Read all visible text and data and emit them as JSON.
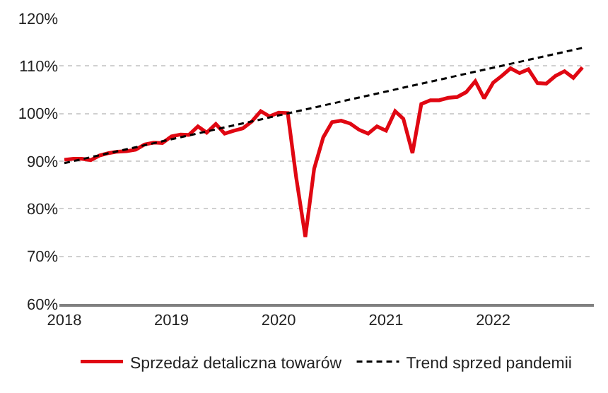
{
  "chart_data": {
    "type": "line",
    "x": [
      "2018-01",
      "2018-02",
      "2018-03",
      "2018-04",
      "2018-05",
      "2018-06",
      "2018-07",
      "2018-08",
      "2018-09",
      "2018-10",
      "2018-11",
      "2018-12",
      "2019-01",
      "2019-02",
      "2019-03",
      "2019-04",
      "2019-05",
      "2019-06",
      "2019-07",
      "2019-08",
      "2019-09",
      "2019-10",
      "2019-11",
      "2019-12",
      "2020-01",
      "2020-02",
      "2020-03",
      "2020-04",
      "2020-05",
      "2020-06",
      "2020-07",
      "2020-08",
      "2020-09",
      "2020-10",
      "2020-11",
      "2020-12",
      "2021-01",
      "2021-02",
      "2021-03",
      "2021-04",
      "2021-05",
      "2021-06",
      "2021-07",
      "2021-08",
      "2021-09",
      "2021-10",
      "2021-11",
      "2021-12",
      "2022-01",
      "2022-02",
      "2022-03",
      "2022-04",
      "2022-05",
      "2022-06",
      "2022-07",
      "2022-08",
      "2022-09",
      "2022-10",
      "2022-11"
    ],
    "series": [
      {
        "name": "Sprzedaż detaliczna towarów",
        "color": "#e00712",
        "line_style": "solid",
        "values": [
          90.3,
          90.5,
          90.5,
          90.2,
          91.2,
          91.7,
          92.0,
          92.1,
          92.4,
          93.5,
          93.9,
          93.8,
          95.2,
          95.6,
          95.5,
          97.3,
          96.0,
          97.8,
          95.8,
          96.4,
          96.9,
          98.3,
          100.5,
          99.4,
          100.2,
          100.1,
          86.5,
          74.1,
          88.4,
          95.0,
          98.2,
          98.5,
          97.9,
          96.6,
          95.8,
          97.3,
          96.4,
          100.5,
          98.9,
          91.7,
          102.0,
          102.8,
          102.8,
          103.3,
          103.5,
          104.5,
          106.8,
          103.2,
          106.5,
          108.0,
          109.5,
          108.5,
          109.3,
          106.4,
          106.3,
          107.9,
          108.9,
          107.5,
          109.7
        ]
      },
      {
        "name": "Trend sprzed pandemii",
        "color": "#000000",
        "line_style": "dashed",
        "x": [
          "2018-01",
          "2022-11"
        ],
        "values": [
          89.6,
          113.8
        ]
      }
    ],
    "xlim": [
      "2017-12-15",
      "2022-12-10"
    ],
    "xticks": [
      "2018",
      "2019",
      "2020",
      "2021",
      "2022"
    ],
    "ylim": [
      60,
      120
    ],
    "yticks": [
      {
        "value": 60,
        "label": "60%"
      },
      {
        "value": 70,
        "label": "70%"
      },
      {
        "value": 80,
        "label": "80%"
      },
      {
        "value": 90,
        "label": "90%"
      },
      {
        "value": 100,
        "label": "100%"
      },
      {
        "value": 110,
        "label": "110%"
      },
      {
        "value": 120,
        "label": "120%"
      }
    ],
    "grid": "y",
    "legend": "bottom",
    "marker": "none"
  }
}
